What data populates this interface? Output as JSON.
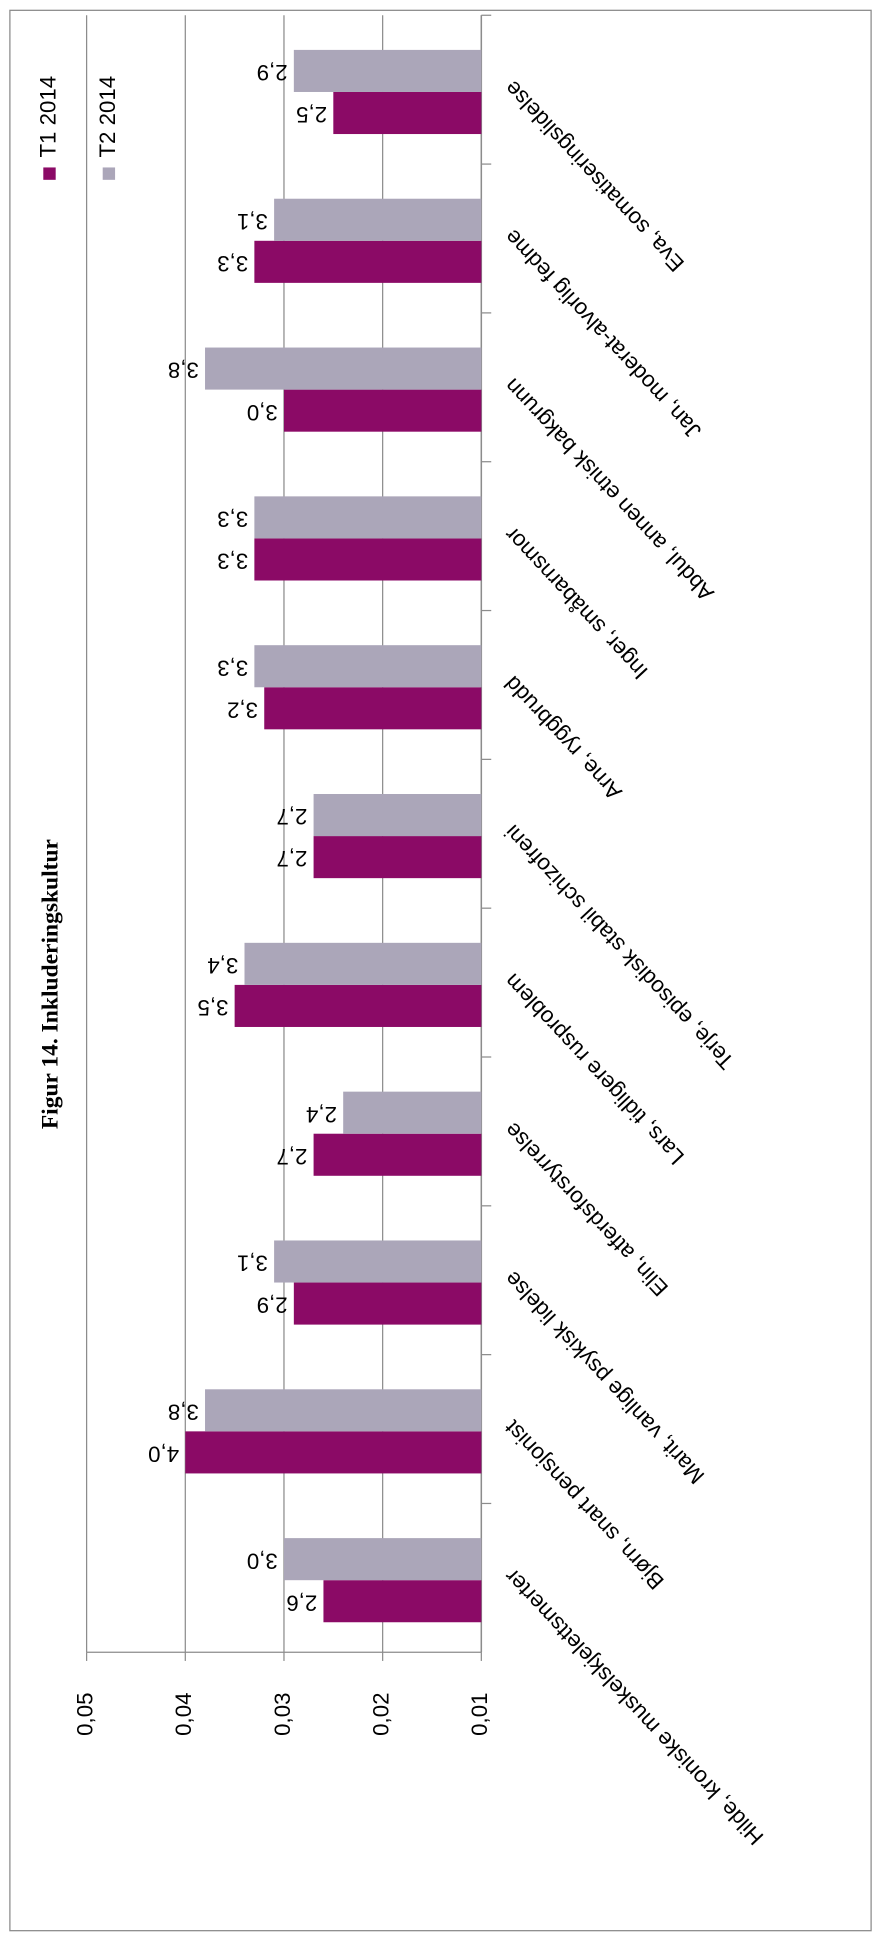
{
  "chart_data": {
    "type": "bar",
    "title": "Figur 14. Inkluderingskultur",
    "categories": [
      "Hilde, kroniske muskelskjelettsmerter",
      "Bjørn, snart pensjonist",
      "Marit, vanlige psykisk lidelse",
      "Elin, atferdsforstyrrelse",
      "Lars, tidligere rusproblem",
      "Terje, episodisk stabil schizofreni",
      "Arne, ryggbrudd",
      "Inger, småbarnsmor",
      "Abdul, annen etnisk bakgrunn",
      "Jan, moderat-alvorlig fedme",
      "Eva, somatiseringslidelse"
    ],
    "series": [
      {
        "name": "T1 2014",
        "color": "#8b0a66",
        "values": [
          0.026,
          0.04,
          0.029,
          0.027,
          0.035,
          0.027,
          0.032,
          0.033,
          0.03,
          0.033,
          0.025
        ],
        "value_labels": [
          "2,6",
          "4,0",
          "2,9",
          "2,7",
          "3,5",
          "2,7",
          "3,2",
          "3,3",
          "3,0",
          "3,3",
          "2,5"
        ]
      },
      {
        "name": "T2 2014",
        "color": "#aba6b9",
        "values": [
          0.03,
          0.038,
          0.031,
          0.024,
          0.034,
          0.027,
          0.033,
          0.033,
          0.038,
          0.031,
          0.029
        ],
        "value_labels": [
          "3,0",
          "3,8",
          "3,1",
          "2,4",
          "3,4",
          "2,7",
          "3,3",
          "3,3",
          "3,8",
          "3,1",
          "2,9"
        ]
      }
    ],
    "ylim": [
      0.01,
      0.05
    ],
    "yticks": [
      {
        "value": 0.01,
        "label": "0,01"
      },
      {
        "value": 0.02,
        "label": "0,02"
      },
      {
        "value": 0.03,
        "label": "0,03"
      },
      {
        "value": 0.04,
        "label": "0,04"
      },
      {
        "value": 0.05,
        "label": "0,05"
      }
    ],
    "grid": true
  }
}
